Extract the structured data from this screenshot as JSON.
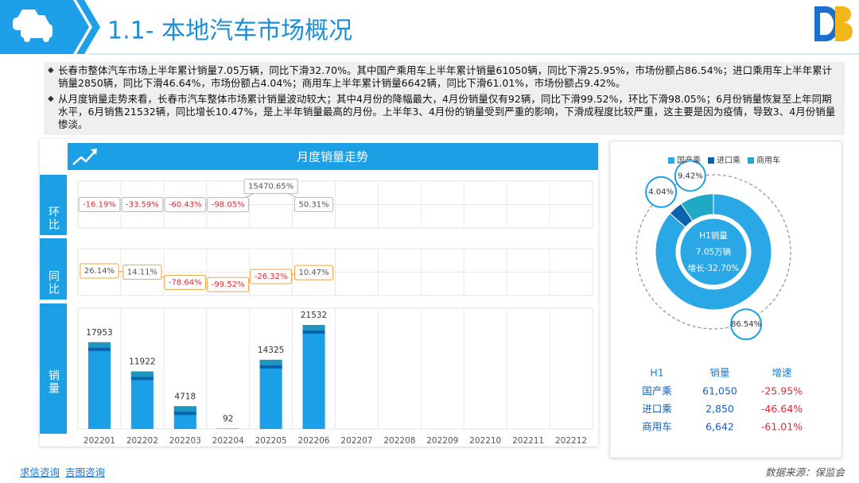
{
  "header": {
    "title": "1.1- 本地汽车市场概况"
  },
  "bullets": [
    "长春市整体汽车市场上半年累计销量7.05万辆，同比下滑32.70%。其中国产乘用车上半年累计销量61050辆，同比下滑25.95%，市场份额占86.54%；进口乘用车上半年累计销量2850辆，同比下滑46.64%，市场份额占4.04%；商用车上半年累计销量6642辆，同比下滑61.01%，市场份额占9.42%。",
    "从月度销量走势来看，长春市汽车整体市场累计销量波动较大；其中4月份的降幅最大，4月份销量仅有92辆，同比下滑99.52%，环比下滑98.05%；6月份销量恢复至上年同期水平，6月销售21532辆，同比增长10.47%，是上半年销量最高的月份。上半年3、4月份的销量受到严重的影响，下滑成程度比较严重，这主要是因为疫情，导致3、4月份销量惨淡。"
  ],
  "panel_title": "月度销量走势",
  "chart_data": [
    {
      "type": "line",
      "title": "环比",
      "color": "#b8b8b8",
      "label_color": "#555555",
      "negative_label_color": "#e0292f",
      "values": [
        -16.19,
        -33.59,
        -60.43,
        -98.05,
        15470.65,
        50.31,
        null,
        null,
        null,
        null,
        null,
        null
      ],
      "value_labels": [
        "-16.19%",
        "-33.59%",
        "-60.43%",
        "-98.05%",
        "15470.65%",
        "50.31%",
        null,
        null,
        null,
        null,
        null,
        null
      ],
      "ylim": [
        -20000,
        20000
      ]
    },
    {
      "type": "line",
      "title": "同比",
      "color": "#f0a33a",
      "label_color": "#555555",
      "negative_label_color": "#e0292f",
      "values": [
        26.14,
        14.11,
        -78.64,
        -99.52,
        -26.32,
        10.47,
        null,
        null,
        null,
        null,
        null,
        null
      ],
      "value_labels": [
        "26.14%",
        "14.11%",
        "-78.64%",
        "-99.52%",
        "-26.32%",
        "10.47%",
        null,
        null,
        null,
        null,
        null,
        null
      ],
      "ylim": [
        -200,
        230
      ]
    },
    {
      "type": "bar",
      "title": "销量",
      "color": "#1b9fe6",
      "categories": [
        "202201",
        "202202",
        "202203",
        "202204",
        "202205",
        "202206",
        "202207",
        "202208",
        "202209",
        "202210",
        "202211",
        "202212"
      ],
      "values": [
        17953,
        11922,
        4718,
        92,
        14325,
        21532,
        null,
        null,
        null,
        null,
        null,
        null
      ],
      "ylim": [
        0,
        25000
      ]
    },
    {
      "type": "pie",
      "categories": [
        "国产乘",
        "进口乘",
        "商用车"
      ],
      "values": [
        86.54,
        4.04,
        9.42
      ],
      "value_labels": [
        "86.54%",
        "4.04%",
        "9.42%"
      ],
      "colors": [
        "#2aa8e6",
        "#0b62ad",
        "#1fa9c6"
      ],
      "center_text": [
        "H1销量",
        "7.05万辆",
        "增长-32.70%"
      ],
      "legend": "top"
    }
  ],
  "table": {
    "header": [
      "H1",
      "销量",
      "增速"
    ],
    "rows": [
      [
        "国产乘",
        "61,050",
        "-25.95%"
      ],
      [
        "进口乘",
        "2,850",
        "-46.64%"
      ],
      [
        "商用车",
        "6,642",
        "-61.01%"
      ]
    ]
  },
  "footer": {
    "links": [
      "求信咨询",
      "吉图咨询"
    ],
    "source": "数据来源：保监会"
  }
}
